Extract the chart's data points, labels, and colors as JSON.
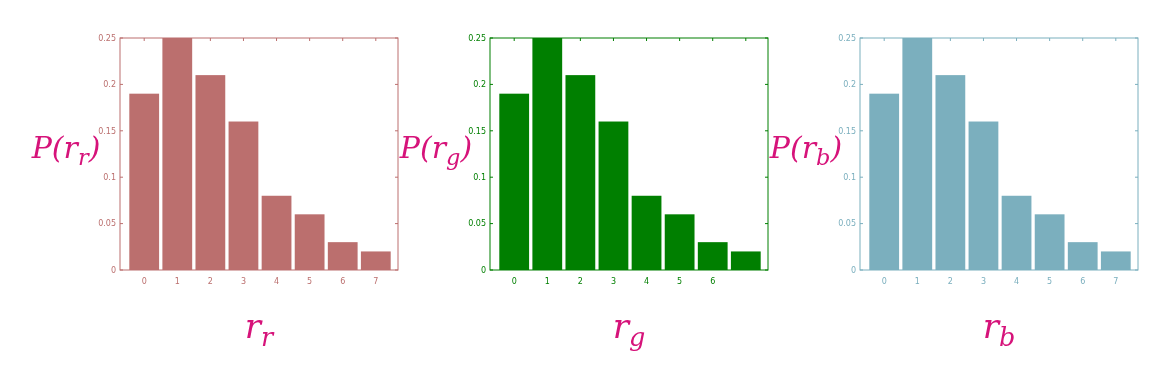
{
  "chart_data": [
    {
      "type": "bar",
      "ylabel": "P(r$_{r}$)",
      "xlabel": "r$_{r}$",
      "categories": [
        "0",
        "1",
        "2",
        "3",
        "4",
        "5",
        "6",
        "7"
      ],
      "series": [
        {
          "color": "#bb6f6e",
          "values": [
            0.19,
            0.25,
            0.21,
            0.16,
            0.08,
            0.06,
            0.03,
            0.02
          ]
        }
      ],
      "ylim": [
        0,
        0.25
      ],
      "yticks": [
        0,
        0.05,
        0.1,
        0.15,
        0.2,
        0.25
      ]
    },
    {
      "type": "bar",
      "ylabel": "P(r$_{g}$)",
      "xlabel": "r$_{g}$",
      "categories": [
        "0",
        "1",
        "2",
        "3",
        "4",
        "5",
        "6",
        null
      ],
      "series": [
        {
          "color": "#007f00",
          "values": [
            0.19,
            0.25,
            0.21,
            0.16,
            0.08,
            0.06,
            0.03,
            0.02
          ]
        }
      ],
      "ylim": [
        0,
        0.25
      ],
      "yticks": [
        0,
        0.05,
        0.1,
        0.15,
        0.2,
        0.25
      ]
    },
    {
      "type": "bar",
      "ylabel": "P(r$_{b}$)",
      "xlabel": "r$_{b}$",
      "categories": [
        "0",
        "1",
        "2",
        "3",
        "4",
        "5",
        "6",
        "7"
      ],
      "series": [
        {
          "color": "#7bafbe",
          "values": [
            0.19,
            0.25,
            0.21,
            0.16,
            0.08,
            0.06,
            0.03,
            0.02
          ]
        }
      ],
      "ylim": [
        0,
        0.25
      ],
      "yticks": [
        0,
        0.05,
        0.1,
        0.15,
        0.2,
        0.25
      ]
    }
  ]
}
